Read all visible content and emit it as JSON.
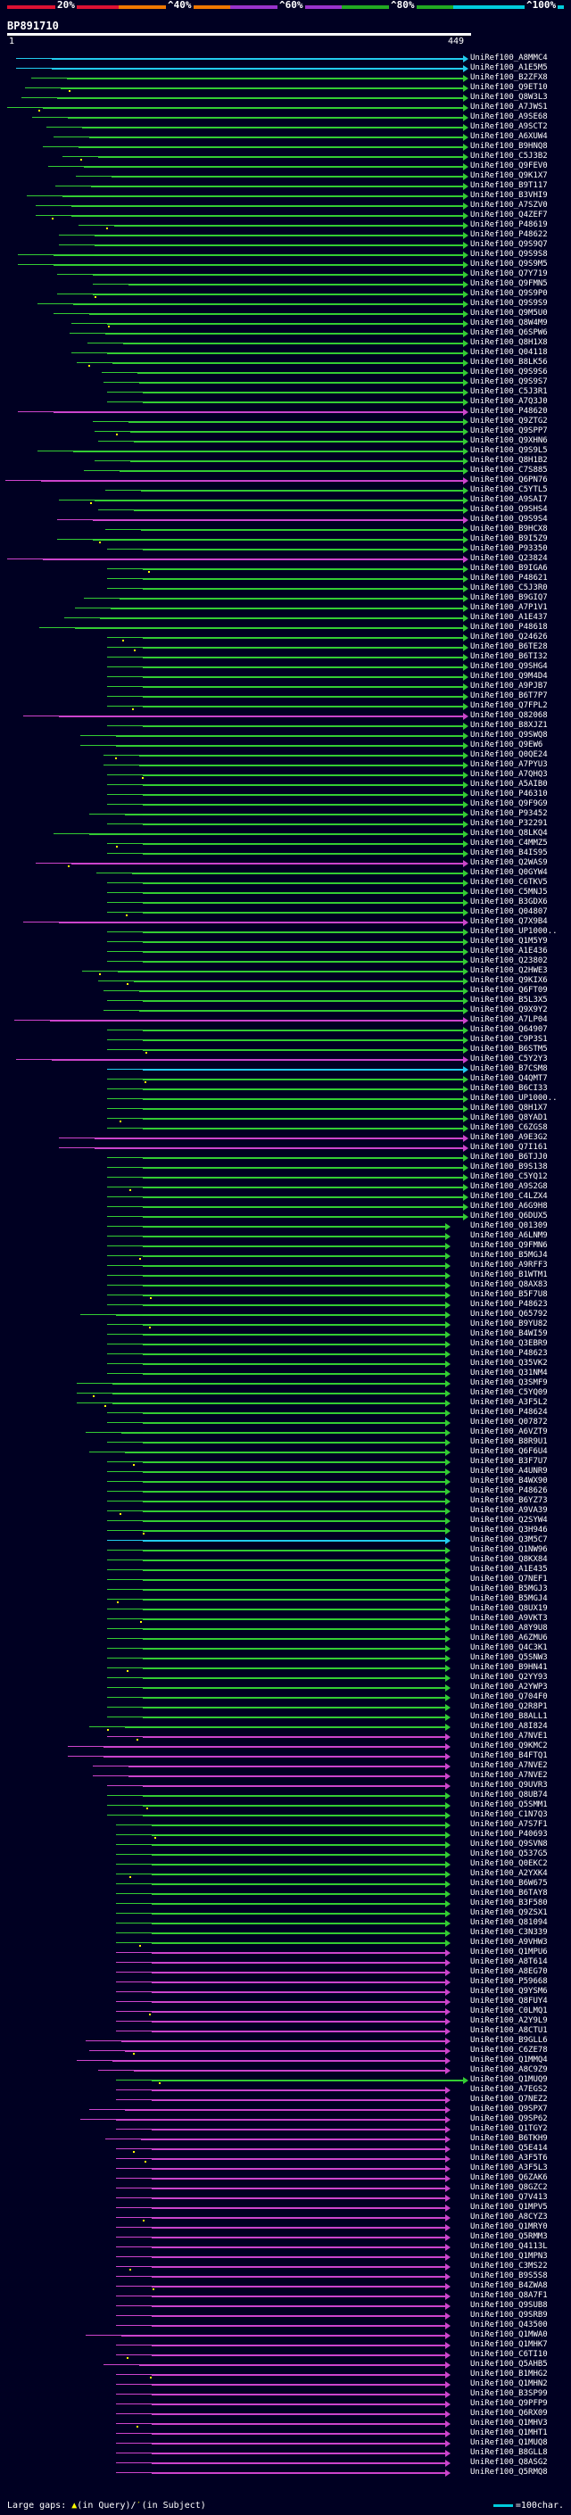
{
  "colors": {
    "background": "#000022",
    "lt20": "#dd1133",
    "p20_40": "#ee7700",
    "p40_60": "#9933cc",
    "p60_80": "#22aa22",
    "p80_100": "#00ccdd",
    "hit_green": "#33cc33",
    "hit_magenta": "#cc44cc",
    "hit_cyan": "#22ccee",
    "gap_marker": "#ffff00"
  },
  "header": {
    "pct_labels": [
      "20%",
      "^40%",
      "^60%",
      "^80%",
      "^100%"
    ],
    "query_id": "BP891710",
    "ruler_start": "1",
    "ruler_end": "449"
  },
  "footer": {
    "legend_left": "Large gaps:",
    "legend_mid": "(in Query)/",
    "legend_right": "(in Subject)",
    "scale_label": "=100char."
  },
  "hits": [
    "UniRef100_A8MMC4",
    "UniRef100_A1E5M5",
    "UniRef100_B2ZFX8",
    "UniRef100_Q9ET10",
    "UniRef100_Q8W3L3",
    "UniRef100_A7JWS1",
    "UniRef100_A9SE68",
    "UniRef100_A9SCT2",
    "UniRef100_A6XUW4",
    "UniRef100_B9HNQ8",
    "UniRef100_C5J3B2",
    "UniRef100_Q9FEV0",
    "UniRef100_Q9K1X7",
    "UniRef100_B9T117",
    "UniRef100_B3VHI9",
    "UniRef100_A7SZV0",
    "UniRef100_Q4ZEF7",
    "UniRef100_P48619",
    "UniRef100_P48622",
    "UniRef100_Q9S9Q7",
    "UniRef100_Q9S9S8",
    "UniRef100_Q9S9M5",
    "UniRef100_Q7Y719",
    "UniRef100_Q9FMN5",
    "UniRef100_Q9S9P0",
    "UniRef100_Q9S9S9",
    "UniRef100_Q9M5U0",
    "UniRef100_Q8W4M9",
    "UniRef100_Q6SPW6",
    "UniRef100_Q8H1X8",
    "UniRef100_Q04118",
    "UniRef100_B8LK56",
    "UniRef100_Q9S9S6",
    "UniRef100_Q9S9S7",
    "UniRef100_C5J3R1",
    "UniRef100_A7Q3J0",
    "UniRef100_P48620",
    "UniRef100_Q9ZTG2",
    "UniRef100_Q9SPP7",
    "UniRef100_Q9XHN6",
    "UniRef100_Q9S9L5",
    "UniRef100_Q8H1B2",
    "UniRef100_C7S885",
    "UniRef100_Q6PN76",
    "UniRef100_C5YTL5",
    "UniRef100_A9SAI7",
    "UniRef100_Q9SHS4",
    "UniRef100_Q9S9S4",
    "UniRef100_B9HCX8",
    "UniRef100_B9I5Z9",
    "UniRef100_P93350",
    "UniRef100_Q23824",
    "UniRef100_B9IGA6",
    "UniRef100_P48621",
    "UniRef100_C5J3R0",
    "UniRef100_B9GIQ7",
    "UniRef100_A7P1V1",
    "UniRef100_A1E437",
    "UniRef100_P48618",
    "UniRef100_Q24626",
    "UniRef100_B6TE28",
    "UniRef100_B6TI32",
    "UniRef100_Q9SHG4",
    "UniRef100_Q9M4D4",
    "UniRef100_A9PJB7",
    "UniRef100_B6T7P7",
    "UniRef100_Q7FPL2",
    "UniRef100_Q82068",
    "UniRef100_B8XJZ1",
    "UniRef100_Q9SWQ8",
    "UniRef100_Q9EW6",
    "UniRef100_Q0QE24",
    "UniRef100_A7PYU3",
    "UniRef100_A7QHQ3",
    "UniRef100_A5AIB0",
    "UniRef100_P46310",
    "UniRef100_Q9F9G9",
    "UniRef100_P93452",
    "UniRef100_P32291",
    "UniRef100_Q8LKQ4",
    "UniRef100_C4MMZ5",
    "UniRef100_B4IS95",
    "UniRef100_Q2WAS9",
    "UniRef100_Q0GYW4",
    "UniRef100_C6TKV5",
    "UniRef100_C5MNJ5",
    "UniRef100_B3GDX6",
    "UniRef100_Q04807",
    "UniRef100_Q7X9B4",
    "UniRef100_UP1000..",
    "UniRef100_Q1M5Y9",
    "UniRef100_A1E436",
    "UniRef100_Q23802",
    "UniRef100_Q2HWE3",
    "UniRef100_Q9KIX6",
    "UniRef100_Q6FT09",
    "UniRef100_B5L3X5",
    "UniRef100_Q9X9Y2",
    "UniRef100_A7LP04",
    "UniRef100_Q64907",
    "UniRef100_C9P3S1",
    "UniRef100_B6STM5",
    "UniRef100_C5Y2Y3",
    "UniRef100_B7CSM8",
    "UniRef100_Q4QMT7",
    "UniRef100_B6CI33",
    "UniRef100_UP1000..",
    "UniRef100_Q8H1X7",
    "UniRef100_Q8YAD1",
    "UniRef100_C6ZGS8",
    "UniRef100_A9E3G2",
    "UniRef100_Q7I161",
    "UniRef100_B6TJJ0",
    "UniRef100_B9S138",
    "UniRef100_C5YQ12",
    "UniRef100_A9S2G8",
    "UniRef100_C4LZX4",
    "UniRef100_A6G9H8",
    "UniRef100_Q6DUX5",
    "UniRef100_Q01309",
    "UniRef100_A6LNM9",
    "UniRef100_Q9FMN6",
    "UniRef100_B5MGJ4",
    "UniRef100_A9RFF3",
    "UniRef100_B1WTM1",
    "UniRef100_Q8AX83",
    "UniRef100_B5F7U8",
    "UniRef100_P48623",
    "UniRef100_Q65792",
    "UniRef100_B9YU82",
    "UniRef100_B4WI59",
    "UniRef100_Q3EBR9",
    "UniRef100_P48623",
    "UniRef100_Q35VK2",
    "UniRef100_Q31NM4",
    "UniRef100_Q3SMF9",
    "UniRef100_C5YQ09",
    "UniRef100_A3F5L2",
    "UniRef100_P48624",
    "UniRef100_Q07872",
    "UniRef100_A6VZT9",
    "UniRef100_B8R9U1",
    "UniRef100_Q6F6U4",
    "UniRef100_B3F7U7",
    "UniRef100_A4UNR9",
    "UniRef100_B4WX90",
    "UniRef100_P48626",
    "UniRef100_B6YZ73",
    "UniRef100_A9VA39",
    "UniRef100_Q2SYW4",
    "UniRef100_Q3H946",
    "UniRef100_Q3M5C7",
    "UniRef100_Q1NW96",
    "UniRef100_Q8KX84",
    "UniRef100_A1E435",
    "UniRef100_Q7NEF1",
    "UniRef100_B5MGJ3",
    "UniRef100_B5MGJ4",
    "UniRef100_Q8UX19",
    "UniRef100_A9VKT3",
    "UniRef100_A8Y9U8",
    "UniRef100_A6ZMU6",
    "UniRef100_Q4C3K1",
    "UniRef100_Q5SNW3",
    "UniRef100_B9HN41",
    "UniRef100_Q2YY93",
    "UniRef100_A2YWP3",
    "UniRef100_Q704F0",
    "UniRef100_Q2R8P1",
    "UniRef100_B8ALL1",
    "UniRef100_A8I824",
    "UniRef100_A7NVE1",
    "UniRef100_Q9KMC2",
    "UniRef100_B4FTQ1",
    "UniRef100_A7NVE2",
    "UniRef100_A7NVE2",
    "UniRef100_Q9UVR3",
    "UniRef100_Q8UB74",
    "UniRef100_Q5SMM1",
    "UniRef100_C1N7Q3",
    "UniRef100_A7S7F1",
    "UniRef100_P40693",
    "UniRef100_Q9SVN8",
    "UniRef100_Q537G5",
    "UniRef100_Q0EKC2",
    "UniRef100_A2YXK4",
    "UniRef100_B6W675",
    "UniRef100_B6TAY8",
    "UniRef100_B3F580",
    "UniRef100_Q9ZSX1",
    "UniRef100_Q81094",
    "UniRef100_C3N339",
    "UniRef100_A9VHW3",
    "UniRef100_Q1MPU6",
    "UniRef100_A8T614",
    "UniRef100_A8EG70",
    "UniRef100_P59668",
    "UniRef100_Q9YSM6",
    "UniRef100_Q8FUY4",
    "UniRef100_C0LMQ1",
    "UniRef100_A2Y9L9",
    "UniRef100_A8CTU1",
    "UniRef100_B9GLL6",
    "UniRef100_C6ZE78",
    "UniRef100_Q1MMQ4",
    "UniRef100_A8C9Z9",
    "UniRef100_Q1MUQ9",
    "UniRef100_A7EGS2",
    "UniRef100_Q7NEZ2",
    "UniRef100_Q9SPX7",
    "UniRef100_Q9SP62",
    "UniRef100_Q1TGY2",
    "UniRef100_B6TKH9",
    "UniRef100_Q5E414",
    "UniRef100_A3F5T6",
    "UniRef100_A3F5L3",
    "UniRef100_Q6ZAK6",
    "UniRef100_Q8GZC2",
    "UniRef100_Q7V413",
    "UniRef100_Q1MPV5",
    "UniRef100_A8CYZ3",
    "UniRef100_Q1MRY0",
    "UniRef100_Q5RMM3",
    "UniRef100_Q4113L",
    "UniRef100_Q1MPN3",
    "UniRef100_C3MS22",
    "UniRef100_B9S5S8",
    "UniRef100_B4ZWA8",
    "UniRef100_Q8A7F1",
    "UniRef100_Q9SUB8",
    "UniRef100_Q9SRB9",
    "UniRef100_Q43500",
    "UniRef100_Q1MWA0",
    "UniRef100_Q1MHK7",
    "UniRef100_C6TI10",
    "UniRef100_Q5AHB5",
    "UniRef100_B1MHG2",
    "UniRef100_Q1MHN2",
    "UniRef100_B3SP99",
    "UniRef100_Q9PFP9",
    "UniRef100_Q6RX09",
    "UniRef100_Q1MHV3",
    "UniRef100_Q1MHT1",
    "UniRef100_Q1MUQ8",
    "UniRef100_B8GLL8",
    "UniRef100_Q8ASG2",
    "UniRef100_Q5RMQ8"
  ],
  "spans": [
    [
      18,
      525,
      "c"
    ],
    [
      18,
      525,
      "c"
    ],
    [
      35,
      525,
      "g"
    ],
    [
      28,
      525,
      "g"
    ],
    [
      24,
      525,
      "g"
    ],
    [
      8,
      525,
      "g"
    ],
    [
      36,
      525,
      "g"
    ],
    [
      52,
      525,
      "g"
    ],
    [
      60,
      525,
      "g"
    ],
    [
      48,
      525,
      "g"
    ],
    [
      70,
      525,
      "g"
    ],
    [
      54,
      525,
      "g"
    ],
    [
      85,
      525,
      "g"
    ],
    [
      62,
      525,
      "g"
    ],
    [
      30,
      525,
      "g"
    ],
    [
      40,
      525,
      "g"
    ],
    [
      40,
      525,
      "g"
    ],
    [
      88,
      525,
      "g"
    ],
    [
      66,
      525,
      "g"
    ],
    [
      66,
      525,
      "g"
    ],
    [
      20,
      525,
      "g"
    ],
    [
      20,
      525,
      "g"
    ],
    [
      64,
      525,
      "g"
    ],
    [
      104,
      525,
      "g"
    ],
    [
      64,
      525,
      "g"
    ],
    [
      42,
      525,
      "g"
    ],
    [
      60,
      525,
      "g"
    ],
    [
      80,
      525,
      "g"
    ],
    [
      78,
      525,
      "g"
    ],
    [
      98,
      525,
      "g"
    ],
    [
      80,
      525,
      "g"
    ],
    [
      86,
      525,
      "g"
    ],
    [
      114,
      525,
      "g"
    ],
    [
      116,
      525,
      "g"
    ],
    [
      120,
      525,
      "g"
    ],
    [
      120,
      525,
      "g"
    ],
    [
      20,
      525,
      "m"
    ],
    [
      104,
      525,
      "g"
    ],
    [
      106,
      525,
      "g"
    ],
    [
      110,
      525,
      "g"
    ],
    [
      42,
      525,
      "g"
    ],
    [
      106,
      525,
      "g"
    ],
    [
      94,
      525,
      "g"
    ],
    [
      6,
      525,
      "m"
    ],
    [
      118,
      525,
      "g"
    ],
    [
      66,
      525,
      "g"
    ],
    [
      110,
      525,
      "g"
    ],
    [
      64,
      525,
      "m"
    ],
    [
      118,
      525,
      "g"
    ],
    [
      64,
      525,
      "g"
    ],
    [
      120,
      525,
      "g"
    ],
    [
      8,
      525,
      "m"
    ],
    [
      120,
      525,
      "g"
    ],
    [
      120,
      525,
      "g"
    ],
    [
      120,
      525,
      "g"
    ],
    [
      94,
      525,
      "g"
    ],
    [
      84,
      525,
      "g"
    ],
    [
      72,
      525,
      "g"
    ],
    [
      44,
      525,
      "g"
    ],
    [
      120,
      525,
      "g"
    ],
    [
      120,
      525,
      "g"
    ],
    [
      120,
      525,
      "g"
    ],
    [
      120,
      525,
      "g"
    ],
    [
      120,
      525,
      "g"
    ],
    [
      120,
      525,
      "g"
    ],
    [
      120,
      525,
      "g"
    ],
    [
      120,
      525,
      "g"
    ],
    [
      26,
      525,
      "m"
    ],
    [
      120,
      525,
      "g"
    ],
    [
      90,
      525,
      "g"
    ],
    [
      90,
      525,
      "g"
    ],
    [
      116,
      525,
      "g"
    ],
    [
      116,
      525,
      "g"
    ],
    [
      120,
      525,
      "g"
    ],
    [
      120,
      525,
      "g"
    ],
    [
      120,
      525,
      "g"
    ],
    [
      120,
      525,
      "g"
    ],
    [
      100,
      525,
      "g"
    ],
    [
      120,
      525,
      "g"
    ],
    [
      60,
      525,
      "g"
    ],
    [
      120,
      525,
      "g"
    ],
    [
      120,
      525,
      "g"
    ],
    [
      40,
      525,
      "m"
    ],
    [
      108,
      525,
      "g"
    ],
    [
      120,
      525,
      "g"
    ],
    [
      120,
      525,
      "g"
    ],
    [
      120,
      525,
      "g"
    ],
    [
      120,
      525,
      "g"
    ],
    [
      26,
      525,
      "m"
    ],
    [
      120,
      525,
      "g"
    ],
    [
      120,
      525,
      "g"
    ],
    [
      120,
      525,
      "g"
    ],
    [
      120,
      525,
      "g"
    ],
    [
      92,
      525,
      "g"
    ],
    [
      110,
      525,
      "g"
    ],
    [
      116,
      525,
      "g"
    ],
    [
      120,
      525,
      "g"
    ],
    [
      116,
      525,
      "g"
    ],
    [
      16,
      525,
      "m"
    ],
    [
      120,
      525,
      "g"
    ],
    [
      120,
      525,
      "g"
    ],
    [
      120,
      525,
      "g"
    ],
    [
      18,
      525,
      "m"
    ],
    [
      120,
      525,
      "c"
    ],
    [
      120,
      525,
      "g"
    ],
    [
      120,
      525,
      "g"
    ],
    [
      120,
      525,
      "g"
    ],
    [
      120,
      525,
      "g"
    ],
    [
      120,
      525,
      "g"
    ],
    [
      120,
      525,
      "g"
    ],
    [
      66,
      525,
      "m"
    ],
    [
      66,
      525,
      "m"
    ],
    [
      120,
      525,
      "g"
    ],
    [
      120,
      525,
      "g"
    ],
    [
      120,
      525,
      "g"
    ],
    [
      120,
      525,
      "g"
    ],
    [
      120,
      525,
      "g"
    ],
    [
      120,
      525,
      "g"
    ],
    [
      120,
      525,
      "g"
    ],
    [
      120,
      505,
      "g"
    ],
    [
      120,
      505,
      "g"
    ],
    [
      120,
      505,
      "g"
    ],
    [
      120,
      505,
      "g"
    ],
    [
      120,
      505,
      "g"
    ],
    [
      120,
      505,
      "g"
    ],
    [
      120,
      505,
      "g"
    ],
    [
      120,
      505,
      "g"
    ],
    [
      120,
      505,
      "g"
    ],
    [
      90,
      505,
      "g"
    ],
    [
      120,
      505,
      "g"
    ],
    [
      120,
      505,
      "g"
    ],
    [
      120,
      505,
      "g"
    ],
    [
      120,
      505,
      "g"
    ],
    [
      120,
      505,
      "g"
    ],
    [
      120,
      505,
      "g"
    ],
    [
      86,
      505,
      "g"
    ],
    [
      86,
      505,
      "g"
    ],
    [
      86,
      505,
      "g"
    ],
    [
      120,
      505,
      "g"
    ],
    [
      120,
      505,
      "g"
    ],
    [
      96,
      505,
      "g"
    ],
    [
      120,
      505,
      "g"
    ],
    [
      100,
      505,
      "g"
    ],
    [
      120,
      505,
      "g"
    ],
    [
      120,
      505,
      "g"
    ],
    [
      120,
      505,
      "g"
    ],
    [
      120,
      505,
      "g"
    ],
    [
      120,
      505,
      "g"
    ],
    [
      120,
      505,
      "g"
    ],
    [
      120,
      505,
      "g"
    ],
    [
      120,
      505,
      "g"
    ],
    [
      120,
      505,
      "c"
    ],
    [
      120,
      505,
      "g"
    ],
    [
      120,
      505,
      "g"
    ],
    [
      120,
      505,
      "g"
    ],
    [
      120,
      505,
      "g"
    ],
    [
      120,
      505,
      "g"
    ],
    [
      120,
      505,
      "g"
    ],
    [
      120,
      505,
      "g"
    ],
    [
      120,
      505,
      "g"
    ],
    [
      120,
      505,
      "g"
    ],
    [
      120,
      505,
      "g"
    ],
    [
      120,
      505,
      "g"
    ],
    [
      120,
      505,
      "g"
    ],
    [
      120,
      505,
      "g"
    ],
    [
      120,
      505,
      "g"
    ],
    [
      120,
      505,
      "g"
    ],
    [
      120,
      505,
      "g"
    ],
    [
      120,
      505,
      "g"
    ],
    [
      120,
      505,
      "g"
    ],
    [
      100,
      505,
      "g"
    ],
    [
      120,
      505,
      "m"
    ],
    [
      76,
      505,
      "m"
    ],
    [
      76,
      505,
      "m"
    ],
    [
      104,
      505,
      "m"
    ],
    [
      104,
      505,
      "m"
    ],
    [
      120,
      505,
      "m"
    ],
    [
      120,
      505,
      "g"
    ],
    [
      120,
      505,
      "g"
    ],
    [
      120,
      505,
      "g"
    ],
    [
      130,
      505,
      "g"
    ],
    [
      130,
      505,
      "g"
    ],
    [
      130,
      505,
      "g"
    ],
    [
      130,
      505,
      "g"
    ],
    [
      130,
      505,
      "g"
    ],
    [
      130,
      505,
      "g"
    ],
    [
      130,
      505,
      "g"
    ],
    [
      130,
      505,
      "g"
    ],
    [
      130,
      505,
      "g"
    ],
    [
      130,
      505,
      "g"
    ],
    [
      130,
      505,
      "g"
    ],
    [
      130,
      505,
      "g"
    ],
    [
      130,
      505,
      "g"
    ],
    [
      130,
      505,
      "m"
    ],
    [
      130,
      505,
      "m"
    ],
    [
      130,
      505,
      "m"
    ],
    [
      130,
      505,
      "m"
    ],
    [
      130,
      505,
      "m"
    ],
    [
      130,
      505,
      "m"
    ],
    [
      130,
      505,
      "m"
    ],
    [
      130,
      505,
      "m"
    ],
    [
      130,
      505,
      "m"
    ],
    [
      96,
      505,
      "m"
    ],
    [
      100,
      505,
      "m"
    ],
    [
      86,
      505,
      "m"
    ],
    [
      110,
      505,
      "m"
    ],
    [
      130,
      525,
      "g"
    ],
    [
      130,
      505,
      "m"
    ],
    [
      130,
      505,
      "m"
    ],
    [
      100,
      505,
      "m"
    ],
    [
      90,
      505,
      "m"
    ],
    [
      130,
      505,
      "m"
    ],
    [
      118,
      505,
      "m"
    ],
    [
      130,
      505,
      "m"
    ],
    [
      130,
      505,
      "m"
    ],
    [
      130,
      505,
      "m"
    ],
    [
      130,
      505,
      "m"
    ],
    [
      130,
      505,
      "m"
    ],
    [
      130,
      505,
      "m"
    ],
    [
      130,
      505,
      "m"
    ],
    [
      130,
      505,
      "m"
    ],
    [
      130,
      505,
      "m"
    ],
    [
      130,
      505,
      "m"
    ],
    [
      130,
      505,
      "m"
    ],
    [
      130,
      505,
      "m"
    ],
    [
      130,
      505,
      "m"
    ],
    [
      130,
      505,
      "m"
    ],
    [
      130,
      505,
      "m"
    ],
    [
      130,
      505,
      "m"
    ],
    [
      130,
      505,
      "m"
    ],
    [
      130,
      505,
      "m"
    ],
    [
      130,
      505,
      "m"
    ],
    [
      96,
      505,
      "m"
    ],
    [
      130,
      505,
      "m"
    ],
    [
      130,
      505,
      "m"
    ],
    [
      116,
      505,
      "m"
    ],
    [
      130,
      505,
      "m"
    ],
    [
      130,
      505,
      "m"
    ],
    [
      130,
      505,
      "m"
    ],
    [
      130,
      505,
      "m"
    ],
    [
      130,
      505,
      "m"
    ],
    [
      130,
      505,
      "m"
    ],
    [
      130,
      505,
      "m"
    ],
    [
      130,
      505,
      "m"
    ],
    [
      130,
      505,
      "m"
    ],
    [
      130,
      505,
      "m"
    ],
    [
      130,
      505,
      "m"
    ]
  ]
}
